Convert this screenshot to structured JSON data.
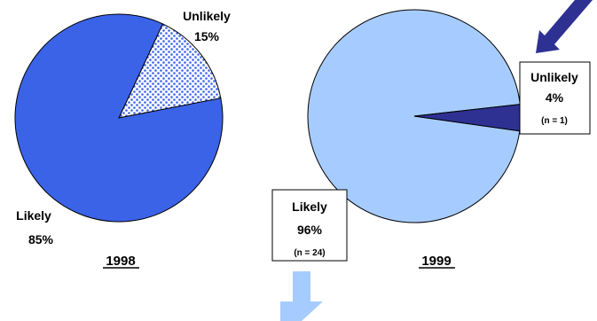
{
  "chart_data": [
    {
      "type": "pie",
      "title": "1998",
      "slices": [
        {
          "label": "Unlikely",
          "value": 15,
          "value_label": "15%",
          "color": "#ffffff",
          "pattern": "dots",
          "dot_color": "#3b63e8"
        },
        {
          "label": "Likely",
          "value": 85,
          "value_label": "85%",
          "color": "#3b63e8"
        }
      ]
    },
    {
      "type": "pie",
      "title": "1999",
      "slices": [
        {
          "label": "Unlikely",
          "value": 4,
          "value_label": "4%",
          "count_label": "(n = 1)",
          "color": "#2e3192"
        },
        {
          "label": "Likely",
          "value": 96,
          "value_label": "96%",
          "count_label": "(n = 24)",
          "color": "#a6ccff"
        }
      ]
    }
  ],
  "decorations": {
    "top_arrow_color": "#2e3192",
    "down_arrow_color": "#a6ccff"
  }
}
